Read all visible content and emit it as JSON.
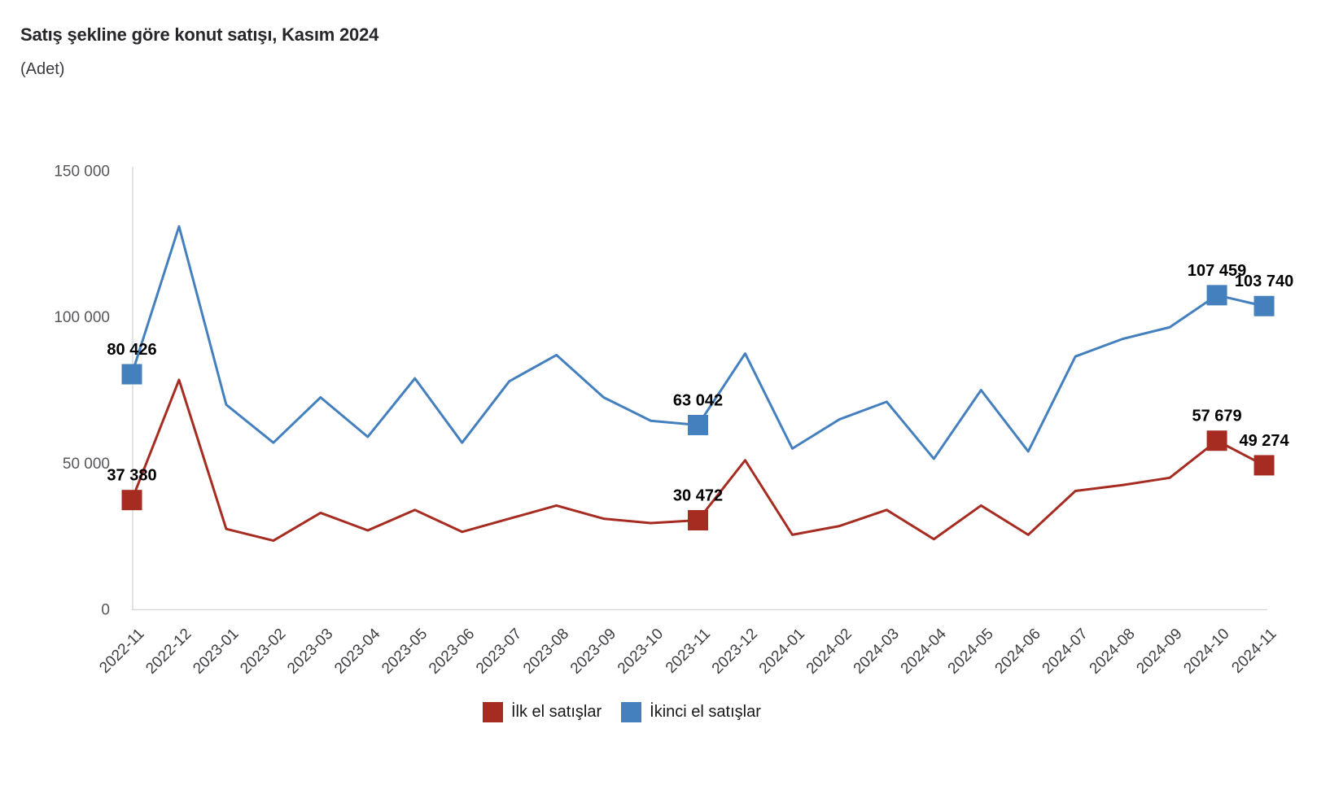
{
  "header": {
    "title": "Satış şekline göre konut satışı, Kasım 2024",
    "subtitle": "(Adet)"
  },
  "chart_data": {
    "type": "line",
    "title": "Satış şekline göre konut satışı, Kasım 2024",
    "subtitle": "(Adet)",
    "unit": "Adet",
    "grid": false,
    "legend_position": "bottom",
    "marker": "square",
    "ylim": [
      0,
      150000
    ],
    "yticks": [
      {
        "value": 0,
        "label": "0"
      },
      {
        "value": 50000,
        "label": "50 000"
      },
      {
        "value": 100000,
        "label": "100 000"
      },
      {
        "value": 150000,
        "label": "150 000"
      }
    ],
    "categories": [
      "2022-11",
      "2022-12",
      "2023-01",
      "2023-02",
      "2023-03",
      "2023-04",
      "2023-05",
      "2023-06",
      "2023-07",
      "2023-08",
      "2023-09",
      "2023-10",
      "2023-11",
      "2023-12",
      "2024-01",
      "2024-02",
      "2024-03",
      "2024-04",
      "2024-05",
      "2024-06",
      "2024-07",
      "2024-08",
      "2024-09",
      "2024-10",
      "2024-11"
    ],
    "series": [
      {
        "name": "İlk el satışlar",
        "color": "#A62C21",
        "values": [
          37380,
          78500,
          27500,
          23500,
          33000,
          27000,
          34000,
          26500,
          31000,
          35500,
          31000,
          29500,
          30472,
          51000,
          25500,
          28500,
          34000,
          24000,
          35500,
          25500,
          40500,
          42500,
          45000,
          57679,
          49274
        ]
      },
      {
        "name": "İkinci el satışlar",
        "color": "#4480BE",
        "values": [
          80426,
          131000,
          70000,
          57000,
          72500,
          59000,
          79000,
          57000,
          78000,
          87000,
          72500,
          64500,
          63042,
          87500,
          55000,
          65000,
          71000,
          51500,
          75000,
          54000,
          86500,
          92500,
          96500,
          107459,
          103740
        ]
      }
    ],
    "annotations": [
      {
        "series_index": 0,
        "point_index": 0,
        "label": "37 380"
      },
      {
        "series_index": 0,
        "point_index": 12,
        "label": "30 472"
      },
      {
        "series_index": 0,
        "point_index": 23,
        "label": "57 679"
      },
      {
        "series_index": 0,
        "point_index": 24,
        "label": "49 274"
      },
      {
        "series_index": 1,
        "point_index": 0,
        "label": "80 426"
      },
      {
        "series_index": 1,
        "point_index": 12,
        "label": "63 042"
      },
      {
        "series_index": 1,
        "point_index": 23,
        "label": "107 459"
      },
      {
        "series_index": 1,
        "point_index": 24,
        "label": "103 740"
      }
    ],
    "colors": {
      "axis_line": "#d9d9d9",
      "ytick_text": "#56575b",
      "xtick_text": "#3d3e42",
      "annotation_text": "#000000"
    }
  }
}
